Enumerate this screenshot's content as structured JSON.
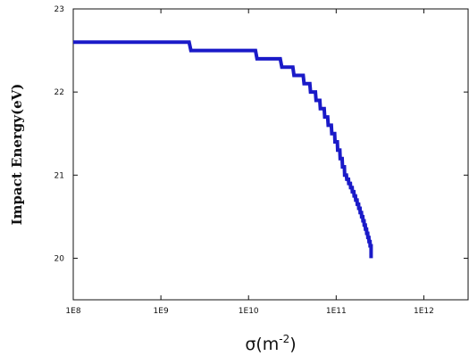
{
  "chart_data": {
    "type": "line",
    "title": "",
    "xlabel_base": "σ(m",
    "xlabel_exp": "-2",
    "xlabel_close": ")",
    "ylabel": "Impact Energy(eV)",
    "x_scale": "log",
    "xlim": [
      100000000.0,
      3200000000000.0
    ],
    "ylim": [
      19.5,
      23
    ],
    "x_ticks": [
      {
        "value": 100000000.0,
        "label": "1E8"
      },
      {
        "value": 1000000000.0,
        "label": "1E9"
      },
      {
        "value": 10000000000.0,
        "label": "1E10"
      },
      {
        "value": 100000000000.0,
        "label": "1E11"
      },
      {
        "value": 1000000000000.0,
        "label": "1E12"
      }
    ],
    "y_ticks": [
      {
        "value": 20,
        "label": "20"
      },
      {
        "value": 21,
        "label": "21"
      },
      {
        "value": 22,
        "label": "22"
      },
      {
        "value": 23,
        "label": "23"
      }
    ],
    "grid": false,
    "color": "#1a1ac8",
    "series": [
      {
        "x": [
          100000000.0,
          2100000000.0,
          2200000000.0,
          12000000000.0,
          12500000000.0,
          23000000000.0,
          24000000000.0,
          32000000000.0,
          33000000000.0,
          42000000000.0,
          43000000000.0,
          50000000000.0,
          51000000000.0,
          58000000000.0,
          59000000000.0,
          65000000000.0,
          66000000000.0,
          73000000000.0,
          74000000000.0,
          80000000000.0,
          81000000000.0,
          88000000000.0,
          89000000000.0,
          96000000000.0,
          97000000000.0,
          103000000000.0,
          104000000000.0,
          110000000000.0,
          111000000000.0,
          117000000000.0,
          118000000000.0,
          124000000000.0,
          125000000000.0,
          131000000000.0,
          132000000000.0,
          138000000000.0,
          139000000000.0,
          145000000000.0,
          146000000000.0,
          152000000000.0,
          153000000000.0,
          159000000000.0,
          160000000000.0,
          166000000000.0,
          167000000000.0,
          173000000000.0,
          174000000000.0,
          180000000000.0,
          181000000000.0,
          187000000000.0,
          188000000000.0,
          194000000000.0,
          195000000000.0,
          201000000000.0,
          202000000000.0,
          208000000000.0,
          209000000000.0,
          215000000000.0,
          216000000000.0,
          222000000000.0,
          223000000000.0,
          229000000000.0,
          230000000000.0,
          236000000000.0,
          237000000000.0,
          243000000000.0,
          244000000000.0,
          250000000000.0,
          250000000000.0
        ],
        "y": [
          22.6,
          22.6,
          22.5,
          22.5,
          22.4,
          22.4,
          22.3,
          22.3,
          22.2,
          22.2,
          22.1,
          22.1,
          22.0,
          22.0,
          21.9,
          21.9,
          21.8,
          21.8,
          21.7,
          21.7,
          21.6,
          21.6,
          21.5,
          21.5,
          21.4,
          21.4,
          21.3,
          21.3,
          21.2,
          21.2,
          21.1,
          21.1,
          21.0,
          21.0,
          20.95,
          20.95,
          20.9,
          20.9,
          20.85,
          20.85,
          20.8,
          20.8,
          20.75,
          20.75,
          20.7,
          20.7,
          20.65,
          20.65,
          20.6,
          20.6,
          20.55,
          20.55,
          20.5,
          20.5,
          20.45,
          20.45,
          20.4,
          20.4,
          20.35,
          20.35,
          20.3,
          20.3,
          20.25,
          20.25,
          20.2,
          20.2,
          20.15,
          20.15,
          20.0
        ]
      }
    ]
  }
}
